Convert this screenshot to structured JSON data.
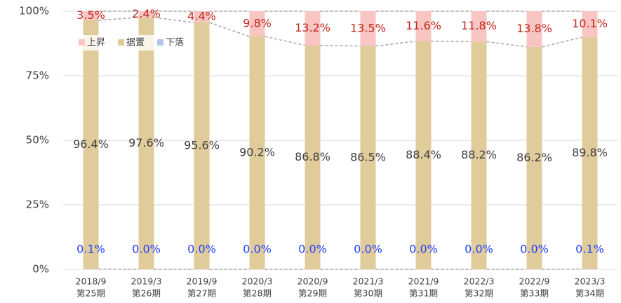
{
  "chart_data": {
    "type": "stacked_bar",
    "categories": [
      [
        "2018/9",
        "第25期"
      ],
      [
        "2019/3",
        "第26期"
      ],
      [
        "2019/9",
        "第27期"
      ],
      [
        "2020/3",
        "第28期"
      ],
      [
        "2020/9",
        "第29期"
      ],
      [
        "2021/3",
        "第30期"
      ],
      [
        "2021/9",
        "第31期"
      ],
      [
        "2022/3",
        "第32期"
      ],
      [
        "2022/9",
        "第33期"
      ],
      [
        "2023/3",
        "第34期"
      ]
    ],
    "series": [
      {
        "name": "下落",
        "color": "#b4c7f0",
        "label_color": "#1f3fff",
        "values": [
          0.1,
          0,
          0,
          0,
          0,
          0,
          0,
          0,
          0,
          0.1
        ],
        "value_labels": [
          "0.1%",
          "0.0%",
          "0.0%",
          "0.0%",
          "0.0%",
          "0.0%",
          "0.0%",
          "0.0%",
          "0.0%",
          "0.1%"
        ]
      },
      {
        "name": "据置",
        "color": "#e0cb9b",
        "label_color": "#404040",
        "values": [
          96.4,
          97.6,
          95.6,
          90.2,
          86.8,
          86.5,
          88.4,
          88.2,
          86.2,
          89.8
        ],
        "value_labels": [
          "96.4%",
          "97.6%",
          "95.6%",
          "90.2%",
          "86.8%",
          "86.5%",
          "88.4%",
          "88.2%",
          "86.2%",
          "89.8%"
        ]
      },
      {
        "name": "上昇",
        "color": "#f9c5c2",
        "label_color": "#c0281c",
        "values": [
          3.5,
          2.4,
          4.4,
          9.8,
          13.2,
          13.5,
          11.6,
          11.8,
          13.8,
          10.1
        ],
        "value_labels": [
          "3.5%",
          "2.4%",
          "4.4%",
          "9.8%",
          "13.2%",
          "13.5%",
          "11.6%",
          "11.8%",
          "13.8%",
          "10.1%"
        ]
      }
    ],
    "legend_order": [
      2,
      1,
      0
    ],
    "ylim": [
      0,
      100
    ],
    "yticks": [
      {
        "value": 0,
        "label": "0%"
      },
      {
        "value": 25,
        "label": "25%"
      },
      {
        "value": 50,
        "label": "50%"
      },
      {
        "value": 75,
        "label": "75%"
      },
      {
        "value": 100,
        "label": "100%"
      }
    ],
    "grid": true
  }
}
